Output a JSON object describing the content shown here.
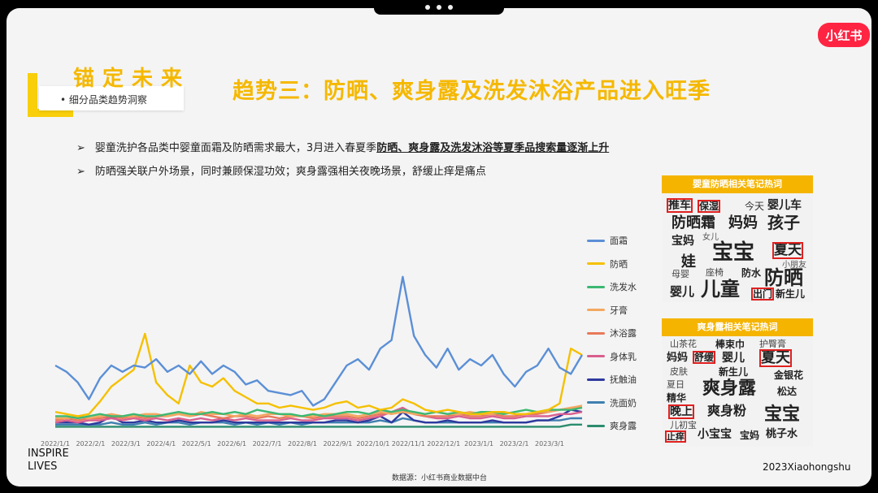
{
  "brand": {
    "logo_text": "小红书",
    "accent": "#f5b800",
    "logo_color": "#ff2442"
  },
  "section": {
    "title": "锚定未来",
    "subtitle": "•  细分品类趋势洞察"
  },
  "main_title": "趋势三：防晒、爽身露及洗发沐浴产品进入旺季",
  "bullets": [
    {
      "arrow": "➢",
      "text": "婴童洗护各品类中婴童面霜及防晒需求最大，3月进入春夏季",
      "bold": "防晒、爽身露及洗发沐浴等夏季品搜索量逐渐上升"
    },
    {
      "arrow": "➢",
      "text": "防晒强关联户外场景，同时兼顾保湿功效；爽身露强相关夜晚场景，舒缓止痒是痛点"
    }
  ],
  "chart_data": {
    "type": "line",
    "x_ticks": [
      "2022/1/1",
      "2022/2/1",
      "2022/3/1",
      "2022/4/1",
      "2022/5/1",
      "2022/6/1",
      "2022/7/1",
      "2022/8/1",
      "2022/9/1",
      "2022/10/1",
      "2022/11/1",
      "2022/12/1",
      "2023/1/1",
      "2023/2/1",
      "2023/3/1"
    ],
    "ylim": [
      0,
      100
    ],
    "legend_position": "right",
    "grid": false,
    "series": [
      {
        "name": "面霜",
        "color": "#5b8fd6",
        "values": [
          30,
          27,
          22,
          14,
          24,
          30,
          27,
          30,
          29,
          33,
          27,
          30,
          26,
          32,
          26,
          30,
          27,
          21,
          23,
          18,
          17,
          16,
          18,
          11,
          14,
          22,
          30,
          33,
          28,
          38,
          42,
          72,
          44,
          35,
          29,
          38,
          28,
          33,
          30,
          35,
          26,
          20,
          27,
          30,
          38,
          29,
          26,
          35
        ]
      },
      {
        "name": "防晒",
        "color": "#f5c000",
        "values": [
          8,
          7,
          6,
          7,
          13,
          20,
          24,
          28,
          45,
          22,
          16,
          12,
          30,
          22,
          20,
          24,
          18,
          15,
          12,
          12,
          10,
          11,
          10,
          9,
          10,
          12,
          13,
          10,
          11,
          9,
          10,
          14,
          12,
          9,
          8,
          9,
          8,
          7,
          7,
          8,
          8,
          7,
          7,
          8,
          9,
          12,
          38,
          35
        ]
      },
      {
        "name": "洗发水",
        "color": "#3cb872",
        "values": [
          6,
          6,
          5,
          6,
          7,
          6,
          6,
          7,
          6,
          6,
          7,
          8,
          7,
          7,
          8,
          7,
          8,
          7,
          9,
          8,
          7,
          7,
          6,
          7,
          6,
          7,
          8,
          8,
          7,
          9,
          8,
          9,
          8,
          7,
          8,
          7,
          8,
          7,
          8,
          8,
          7,
          8,
          9,
          8,
          9,
          9,
          9,
          10
        ]
      },
      {
        "name": "牙膏",
        "color": "#f3a860",
        "values": [
          5,
          5,
          6,
          5,
          6,
          7,
          6,
          6,
          7,
          7,
          6,
          7,
          6,
          8,
          7,
          7,
          6,
          7,
          6,
          7,
          7,
          6,
          6,
          6,
          7,
          7,
          7,
          6,
          7,
          8,
          7,
          8,
          7,
          7,
          8,
          7,
          7,
          8,
          7,
          7,
          8,
          7,
          7,
          8,
          8,
          9,
          10,
          11
        ]
      },
      {
        "name": "沐浴露",
        "color": "#e8795a",
        "values": [
          4,
          5,
          4,
          5,
          5,
          6,
          5,
          6,
          5,
          6,
          6,
          7,
          6,
          7,
          6,
          5,
          6,
          6,
          5,
          6,
          5,
          6,
          6,
          5,
          6,
          6,
          6,
          5,
          6,
          7,
          8,
          9,
          7,
          6,
          6,
          6,
          7,
          6,
          6,
          7,
          6,
          6,
          7,
          7,
          8,
          9,
          10,
          10
        ]
      },
      {
        "name": "身体乳",
        "color": "#d95f8e",
        "values": [
          3,
          4,
          3,
          4,
          4,
          5,
          4,
          5,
          4,
          5,
          4,
          5,
          4,
          5,
          4,
          5,
          4,
          5,
          4,
          4,
          4,
          5,
          4,
          4,
          5,
          5,
          5,
          4,
          5,
          6,
          8,
          10,
          7,
          6,
          5,
          5,
          6,
          5,
          5,
          6,
          5,
          5,
          6,
          6,
          6,
          7,
          7,
          8
        ]
      },
      {
        "name": "抚触油",
        "color": "#2e3a9e",
        "values": [
          3,
          3,
          3,
          2,
          3,
          6,
          3,
          3,
          4,
          3,
          3,
          4,
          3,
          3,
          3,
          4,
          3,
          3,
          3,
          3,
          3,
          3,
          3,
          3,
          3,
          4,
          4,
          3,
          4,
          6,
          3,
          8,
          4,
          3,
          3,
          4,
          3,
          3,
          3,
          4,
          3,
          3,
          3,
          4,
          4,
          6,
          9,
          8
        ]
      },
      {
        "name": "洗面奶",
        "color": "#3f7fb0",
        "values": [
          2,
          2,
          2,
          2,
          2,
          3,
          2,
          2,
          3,
          2,
          3,
          3,
          2,
          3,
          3,
          3,
          2,
          3,
          2,
          3,
          2,
          3,
          2,
          3,
          3,
          3,
          3,
          3,
          3,
          4,
          3,
          5,
          4,
          3,
          3,
          3,
          3,
          3,
          3,
          3,
          3,
          3,
          3,
          4,
          4,
          4,
          5,
          5
        ]
      },
      {
        "name": "爽身露",
        "color": "#2b8c6e",
        "values": [
          1,
          1,
          1,
          1,
          1,
          1,
          1,
          1,
          1,
          1,
          1,
          1,
          1,
          1,
          1,
          1,
          1,
          1,
          1,
          1,
          1,
          1,
          1,
          1,
          1,
          1,
          1,
          1,
          1,
          1,
          1,
          1,
          1,
          1,
          1,
          1,
          1,
          1,
          1,
          1,
          1,
          1,
          1,
          1,
          1,
          1,
          2,
          2
        ]
      }
    ]
  },
  "cloud1": {
    "title": "婴童防晒相关笔记热词",
    "words": [
      "推车",
      "保湿",
      "今天",
      "婴儿车",
      "防晒霜",
      "妈妈",
      "孩子",
      "宝妈",
      "女儿",
      "宝宝",
      "夏天",
      "娃",
      "小朋友",
      "防水",
      "座椅",
      "防晒",
      "母婴",
      "儿童",
      "婴儿",
      "出门",
      "新生儿"
    ],
    "highlighted": [
      "推车",
      "保湿",
      "夏天",
      "出门"
    ]
  },
  "cloud2": {
    "title": "爽身露相关笔记热词",
    "words": [
      "山茶花",
      "棒束巾",
      "护臀膏",
      "妈妈",
      "舒缓",
      "婴儿",
      "夏天",
      "皮肤",
      "新生儿",
      "金银花",
      "夏日",
      "爽身露",
      "精华",
      "松达",
      "晚上",
      "爽身粉",
      "宝宝",
      "儿初宝",
      "止痒",
      "小宝宝",
      "宝妈",
      "桃子水"
    ],
    "highlighted": [
      "舒缓",
      "夏天",
      "晚上",
      "止痒"
    ]
  },
  "footer": {
    "tagline_1": "INSPIRE",
    "tagline_2": "LIVES",
    "source": "数据源：小红书商业数据中台",
    "copyright": "2023Xiaohongshu"
  }
}
